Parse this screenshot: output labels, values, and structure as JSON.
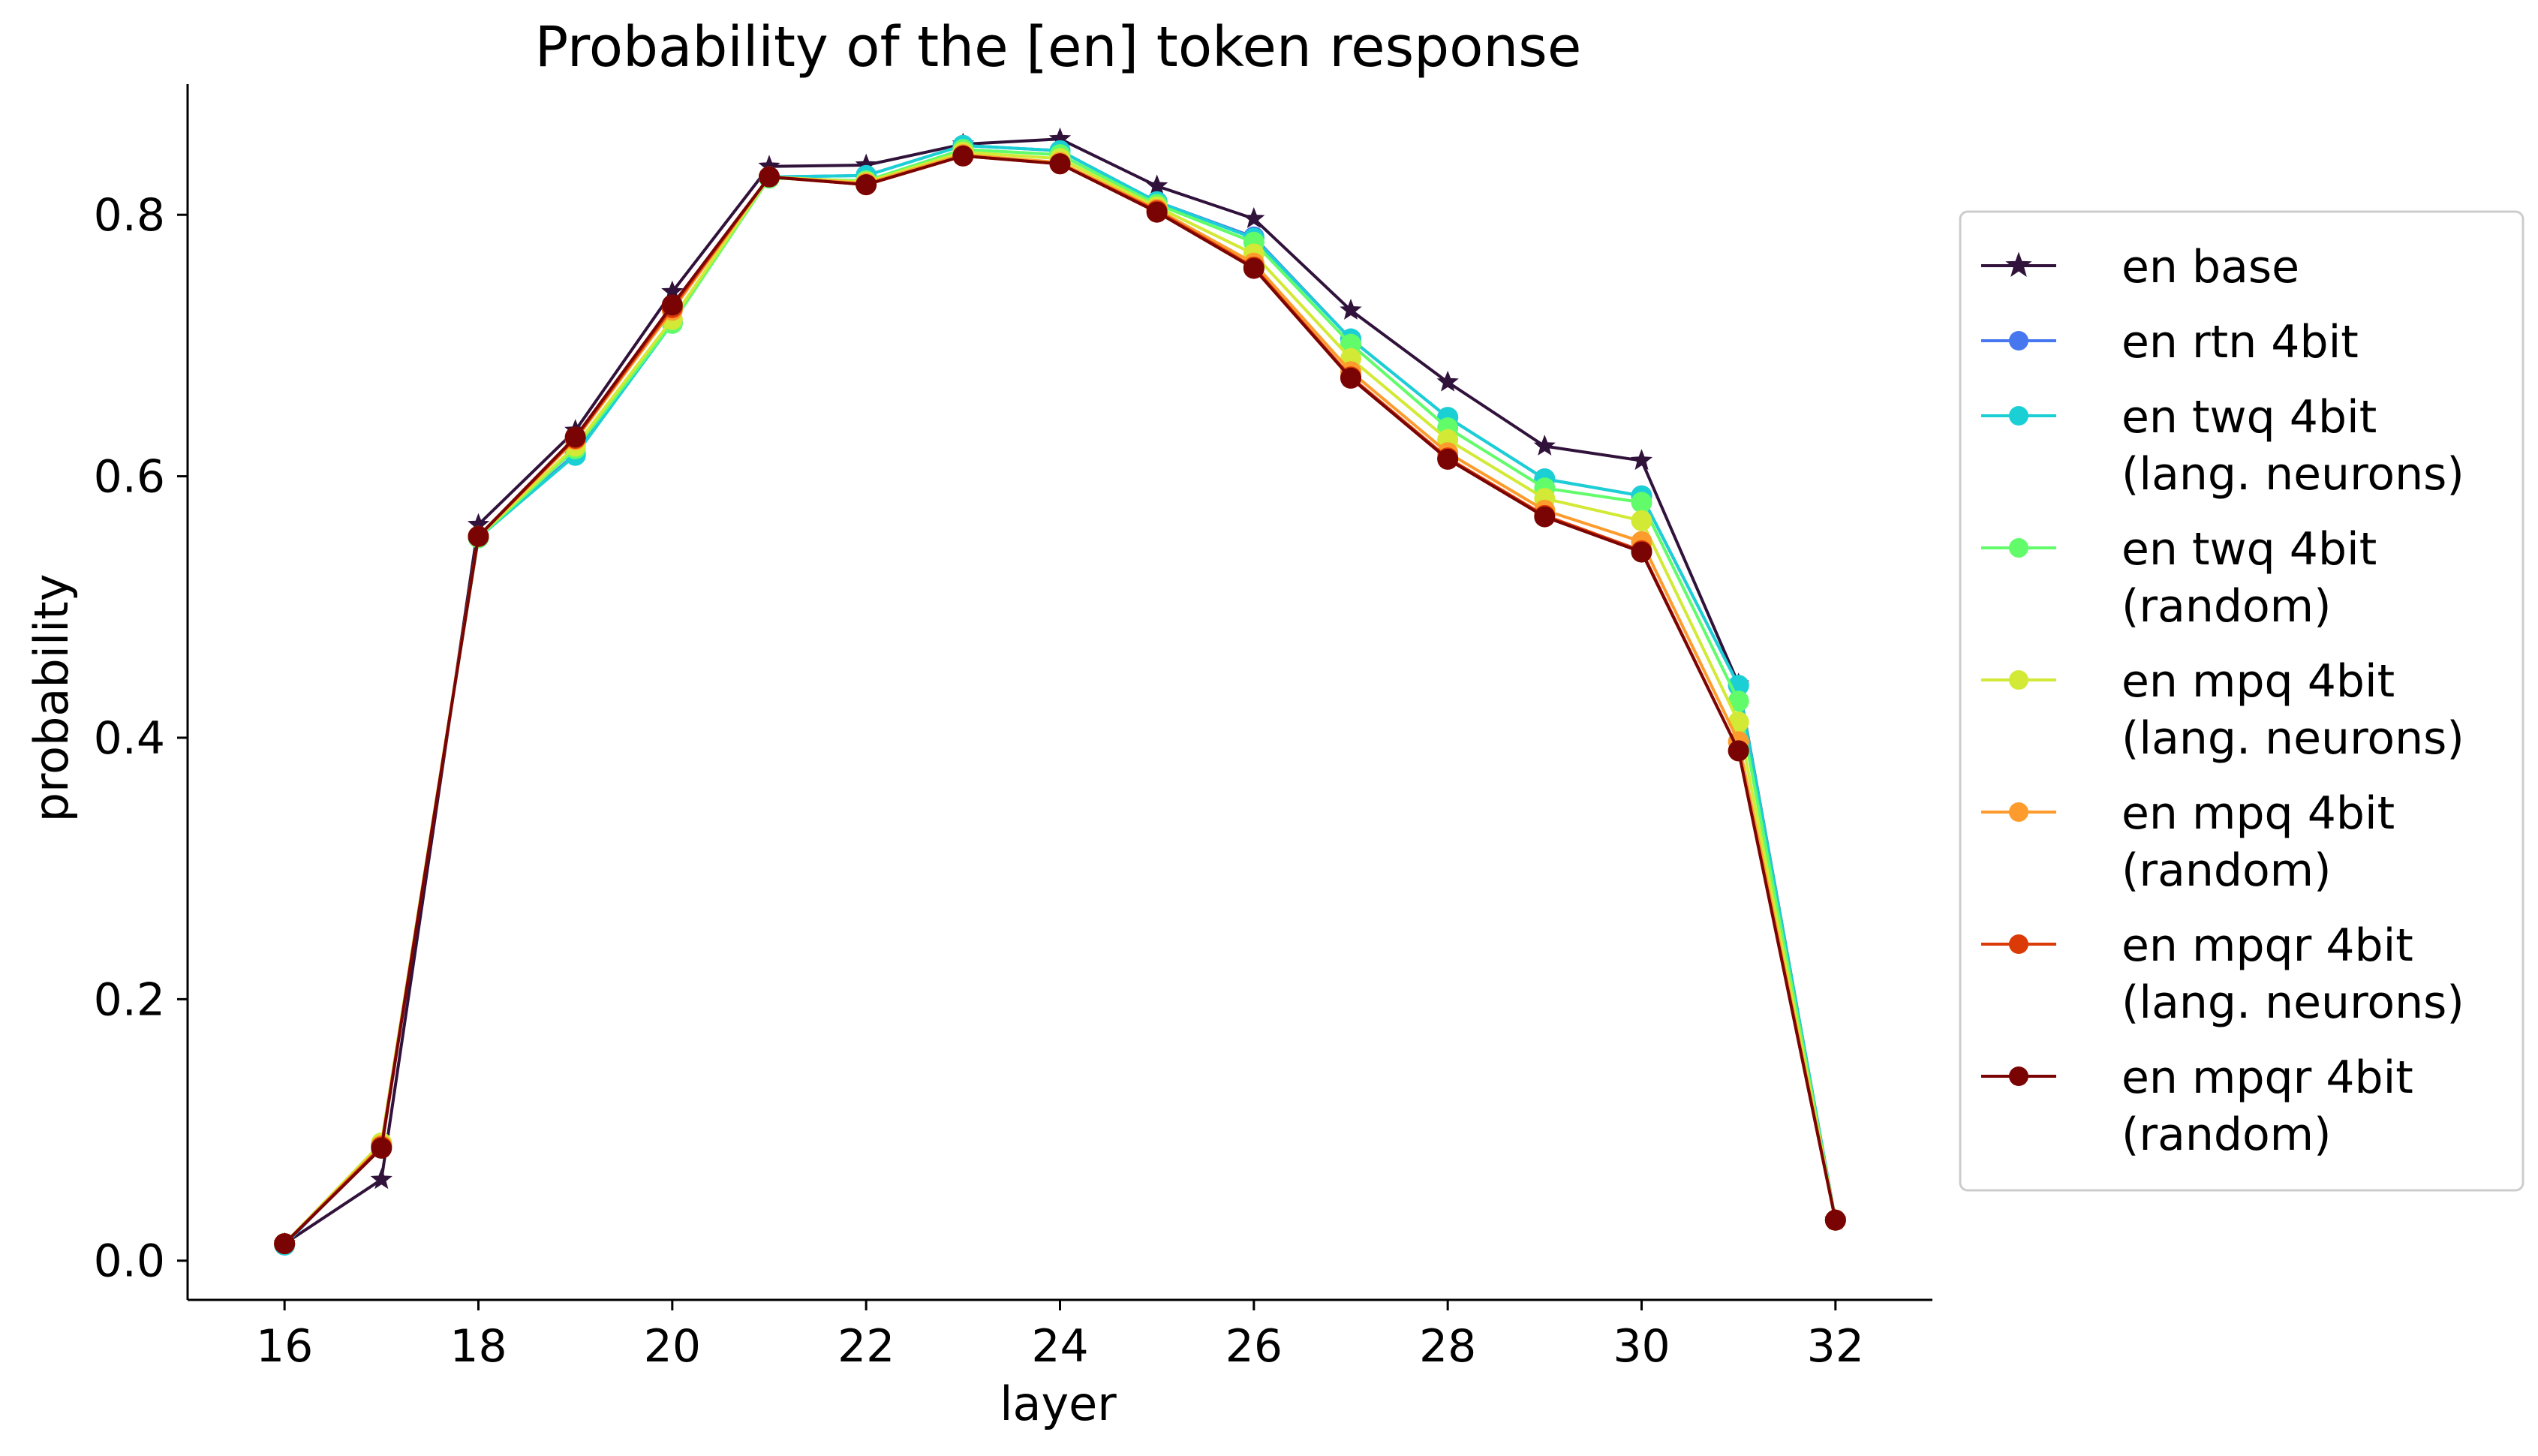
{
  "chart_data": {
    "type": "line",
    "title": "Probability of the [en] token response",
    "xlabel": "layer",
    "ylabel": "probability",
    "xlim": [
      15,
      33
    ],
    "ylim": [
      -0.03,
      0.9
    ],
    "xticks": [
      16,
      18,
      20,
      22,
      24,
      26,
      28,
      30,
      32
    ],
    "xtick_labels": [
      "16",
      "18",
      "20",
      "22",
      "24",
      "26",
      "28",
      "30",
      "32"
    ],
    "yticks": [
      0.0,
      0.2,
      0.4,
      0.6,
      0.8
    ],
    "ytick_labels": [
      "0.0",
      "0.2",
      "0.4",
      "0.6",
      "0.8"
    ],
    "grid": false,
    "legend_position": "outside-right",
    "x": [
      16,
      17,
      18,
      19,
      20,
      21,
      22,
      23,
      24,
      25,
      26,
      27,
      28,
      29,
      30,
      31,
      32
    ],
    "series": [
      {
        "name": [
          "en base"
        ],
        "color": "#30123b",
        "marker": "star",
        "values": [
          0.013,
          0.062,
          0.563,
          0.635,
          0.741,
          0.837,
          0.838,
          0.854,
          0.858,
          0.822,
          0.797,
          0.727,
          0.672,
          0.623,
          0.612,
          0.441,
          0.031
        ]
      },
      {
        "name": [
          "en rtn 4bit"
        ],
        "color": "#4777ef",
        "marker": "circle",
        "values": [
          0.012,
          0.088,
          0.553,
          0.617,
          0.718,
          0.829,
          0.83,
          0.853,
          0.849,
          0.81,
          0.783,
          0.705,
          0.645,
          0.598,
          0.585,
          0.44,
          0.031
        ]
      },
      {
        "name": [
          "en twq 4bit",
          "(lang. neurons)"
        ],
        "color": "#1bd0d5",
        "marker": "circle",
        "values": [
          0.012,
          0.089,
          0.553,
          0.616,
          0.717,
          0.829,
          0.83,
          0.853,
          0.849,
          0.81,
          0.782,
          0.705,
          0.645,
          0.598,
          0.585,
          0.44,
          0.031
        ]
      },
      {
        "name": [
          "en twq 4bit",
          "(random)"
        ],
        "color": "#62fc6b",
        "marker": "circle",
        "values": [
          0.013,
          0.09,
          0.553,
          0.621,
          0.717,
          0.828,
          0.826,
          0.85,
          0.846,
          0.808,
          0.779,
          0.701,
          0.637,
          0.591,
          0.58,
          0.428,
          0.031
        ]
      },
      {
        "name": [
          "en mpq 4bit",
          "(lang. neurons)"
        ],
        "color": "#d2e935",
        "marker": "circle",
        "values": [
          0.013,
          0.09,
          0.554,
          0.623,
          0.72,
          0.829,
          0.825,
          0.848,
          0.843,
          0.806,
          0.77,
          0.69,
          0.628,
          0.583,
          0.566,
          0.412,
          0.031
        ]
      },
      {
        "name": [
          "en mpq 4bit",
          "(random)"
        ],
        "color": "#fe9b2d",
        "marker": "circle",
        "values": [
          0.013,
          0.088,
          0.554,
          0.628,
          0.727,
          0.829,
          0.824,
          0.846,
          0.84,
          0.804,
          0.763,
          0.68,
          0.618,
          0.574,
          0.55,
          0.397,
          0.031
        ]
      },
      {
        "name": [
          "en mpqr 4bit",
          "(lang. neurons)"
        ],
        "color": "#db3a07",
        "marker": "circle",
        "values": [
          0.013,
          0.087,
          0.554,
          0.629,
          0.729,
          0.829,
          0.823,
          0.845,
          0.839,
          0.803,
          0.76,
          0.676,
          0.614,
          0.57,
          0.543,
          0.39,
          0.031
        ]
      },
      {
        "name": [
          "en mpqr 4bit",
          "(random)"
        ],
        "color": "#7a0403",
        "marker": "circle",
        "values": [
          0.013,
          0.086,
          0.554,
          0.63,
          0.731,
          0.829,
          0.823,
          0.845,
          0.839,
          0.802,
          0.759,
          0.675,
          0.613,
          0.569,
          0.542,
          0.39,
          0.031
        ]
      }
    ]
  }
}
